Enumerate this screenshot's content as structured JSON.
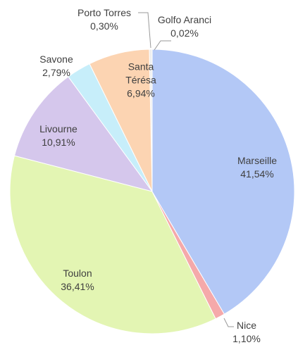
{
  "chart_data": {
    "type": "pie",
    "categories": [
      "Marseille",
      "Nice",
      "Toulon",
      "Livourne",
      "Savone",
      "Santa Térésa",
      "Porto Torres",
      "Golfo Aranci"
    ],
    "values": [
      41.54,
      1.1,
      36.41,
      10.91,
      2.79,
      6.94,
      0.3,
      0.02
    ],
    "value_labels": [
      "41,54%",
      "1,10%",
      "36,41%",
      "10,91%",
      "2,79%",
      "6,94%",
      "0,30%",
      "0,02%"
    ],
    "colors": [
      "#b3c8f6",
      "#f5a9aa",
      "#e3f5b3",
      "#d5c7ec",
      "#c7eefa",
      "#fcd4b2",
      "#eeeeee",
      "#cfcfcf"
    ]
  }
}
